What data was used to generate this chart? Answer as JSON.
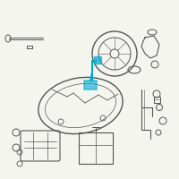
{
  "bg_color": "#f5f5f0",
  "highlight_color": "#00aacc",
  "line_color": "#555555",
  "title": "",
  "figsize": [
    2.0,
    2.0
  ],
  "dpi": 100
}
